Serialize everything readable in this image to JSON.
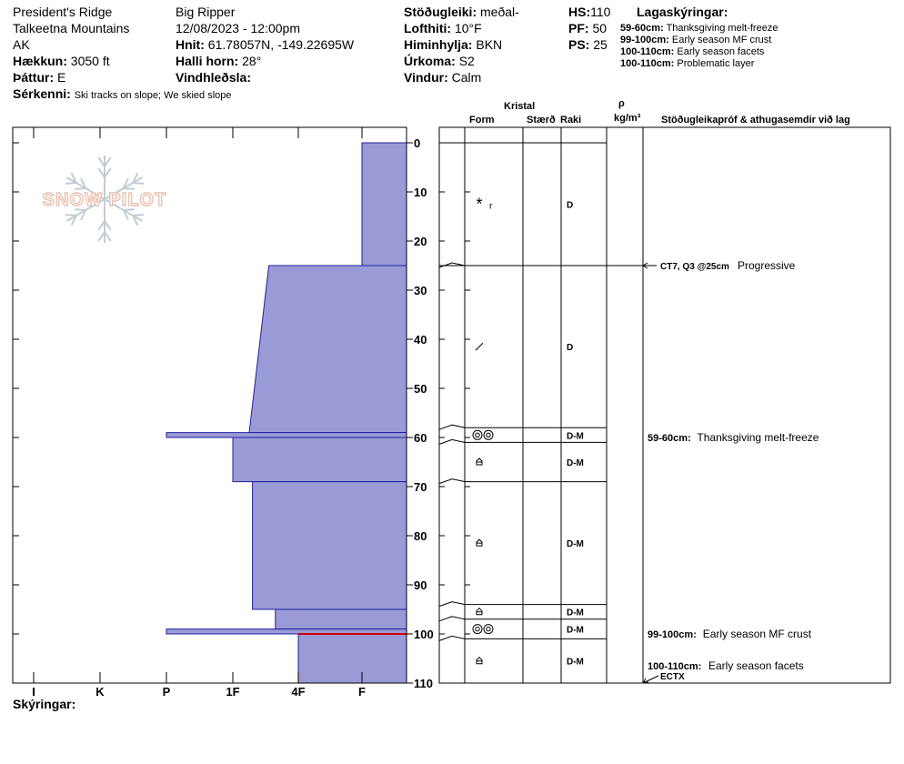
{
  "header": {
    "location": "President's Ridge",
    "range": "Talkeetna Mountains",
    "state": "AK",
    "elevation_label": "Hækkun:",
    "elevation": "3050 ft",
    "aspect_label": "Þáttur:",
    "aspect": "E",
    "features_label": "Sérkenni:",
    "features": "Ski tracks on slope; We skied slope",
    "observer": "Big Ripper",
    "datetime": "12/08/2023 - 12:00pm",
    "coords_label": "Hnit:",
    "coords": "61.78057N, -149.22695W",
    "slope_label": "Halli horn:",
    "slope": "28°",
    "wind_loading_label": "Vindhleðsla:",
    "wind_loading": "",
    "stability_label": "Stöðugleiki:",
    "stability": "meðal-",
    "airtemp_label": "Lofthiti:",
    "airtemp": "10°F",
    "sky_label": "Himinhylja:",
    "sky": "BKN",
    "precip_label": "Úrkoma:",
    "precip": "S2",
    "wind_label": "Vindur:",
    "wind": "Calm",
    "hs_label": "HS:",
    "hs": "110",
    "pf_label": "PF:",
    "pf": "50",
    "ps_label": "PS:",
    "ps": "25",
    "legend_title": "Lagaskýringar:",
    "legend": [
      {
        "depth": "59-60cm:",
        "text": "Thanksgiving melt-freeze"
      },
      {
        "depth": "99-100cm:",
        "text": "Early season MF crust"
      },
      {
        "depth": "100-110cm:",
        "text": "Early season facets"
      },
      {
        "depth": "100-110cm:",
        "text": "Problematic layer"
      }
    ]
  },
  "footer": {
    "notes_label": "Skýringar:"
  },
  "table_headers": {
    "kristal": "Kristal",
    "form": "Form",
    "size": "Stærð",
    "moisture": "Raki",
    "rho": "ρ",
    "density_unit": "kg/m³",
    "comments": "Stöðugleikapróf & athugasemdir við lag"
  },
  "logo_text": "SNOW PILOT",
  "chart_data": {
    "type": "snow_profile",
    "depth_range": [
      0,
      110
    ],
    "depth_ticks": [
      0,
      10,
      20,
      30,
      40,
      50,
      60,
      70,
      80,
      90,
      100,
      110
    ],
    "hardness_scale": [
      "I",
      "K",
      "P",
      "1F",
      "4F",
      "F"
    ],
    "hardness_profile": [
      {
        "top": 0,
        "bottom": 25,
        "hardness": "F",
        "level": 6.0
      },
      {
        "top": 25,
        "bottom": 59,
        "hardness": "1F to 4F",
        "level_top": 4.55,
        "level_bottom": 4.25
      },
      {
        "top": 59,
        "bottom": 60,
        "hardness": "P",
        "level": 3.0
      },
      {
        "top": 60,
        "bottom": 69,
        "hardness": "1F+",
        "level": 4.0
      },
      {
        "top": 69,
        "bottom": 95,
        "hardness": "1F",
        "level": 4.3
      },
      {
        "top": 95,
        "bottom": 99,
        "hardness": "4F-",
        "level": 4.65
      },
      {
        "top": 99,
        "bottom": 100,
        "hardness": "P",
        "level": 3.0
      },
      {
        "top": 100,
        "bottom": 110,
        "hardness": "4F",
        "level": 5.0
      }
    ],
    "problem_layer_depth": 100,
    "layers": [
      {
        "top": 0,
        "bottom": 25,
        "form": "precip-rime",
        "form_label": "r",
        "moisture": "D"
      },
      {
        "top": 25,
        "bottom": 58,
        "form": "decomposing",
        "moisture": "D"
      },
      {
        "top": 58,
        "bottom": 61,
        "form": "melt-freeze",
        "moisture": "D-M"
      },
      {
        "top": 61,
        "bottom": 69,
        "form": "facets",
        "moisture": "D-M"
      },
      {
        "top": 69,
        "bottom": 94,
        "form": "facets",
        "moisture": "D-M"
      },
      {
        "top": 94,
        "bottom": 97,
        "form": "facets",
        "moisture": "D-M"
      },
      {
        "top": 97,
        "bottom": 101,
        "form": "melt-freeze",
        "moisture": "D-M"
      },
      {
        "top": 101,
        "bottom": 110,
        "form": "facets",
        "moisture": "D-M"
      }
    ],
    "tests": [
      {
        "depth": 25,
        "label": "CT7, Q3 @25cm",
        "result": "Progressive"
      },
      {
        "depth": 110,
        "label": "ECTX",
        "result": ""
      }
    ],
    "comments": [
      {
        "depth": 60,
        "label": "59-60cm:",
        "text": "Thanksgiving melt-freeze"
      },
      {
        "depth": 100,
        "label": "99-100cm:",
        "text": "Early season MF crust"
      },
      {
        "depth": 106.5,
        "label": "100-110cm:",
        "text": "Early season facets"
      }
    ]
  }
}
